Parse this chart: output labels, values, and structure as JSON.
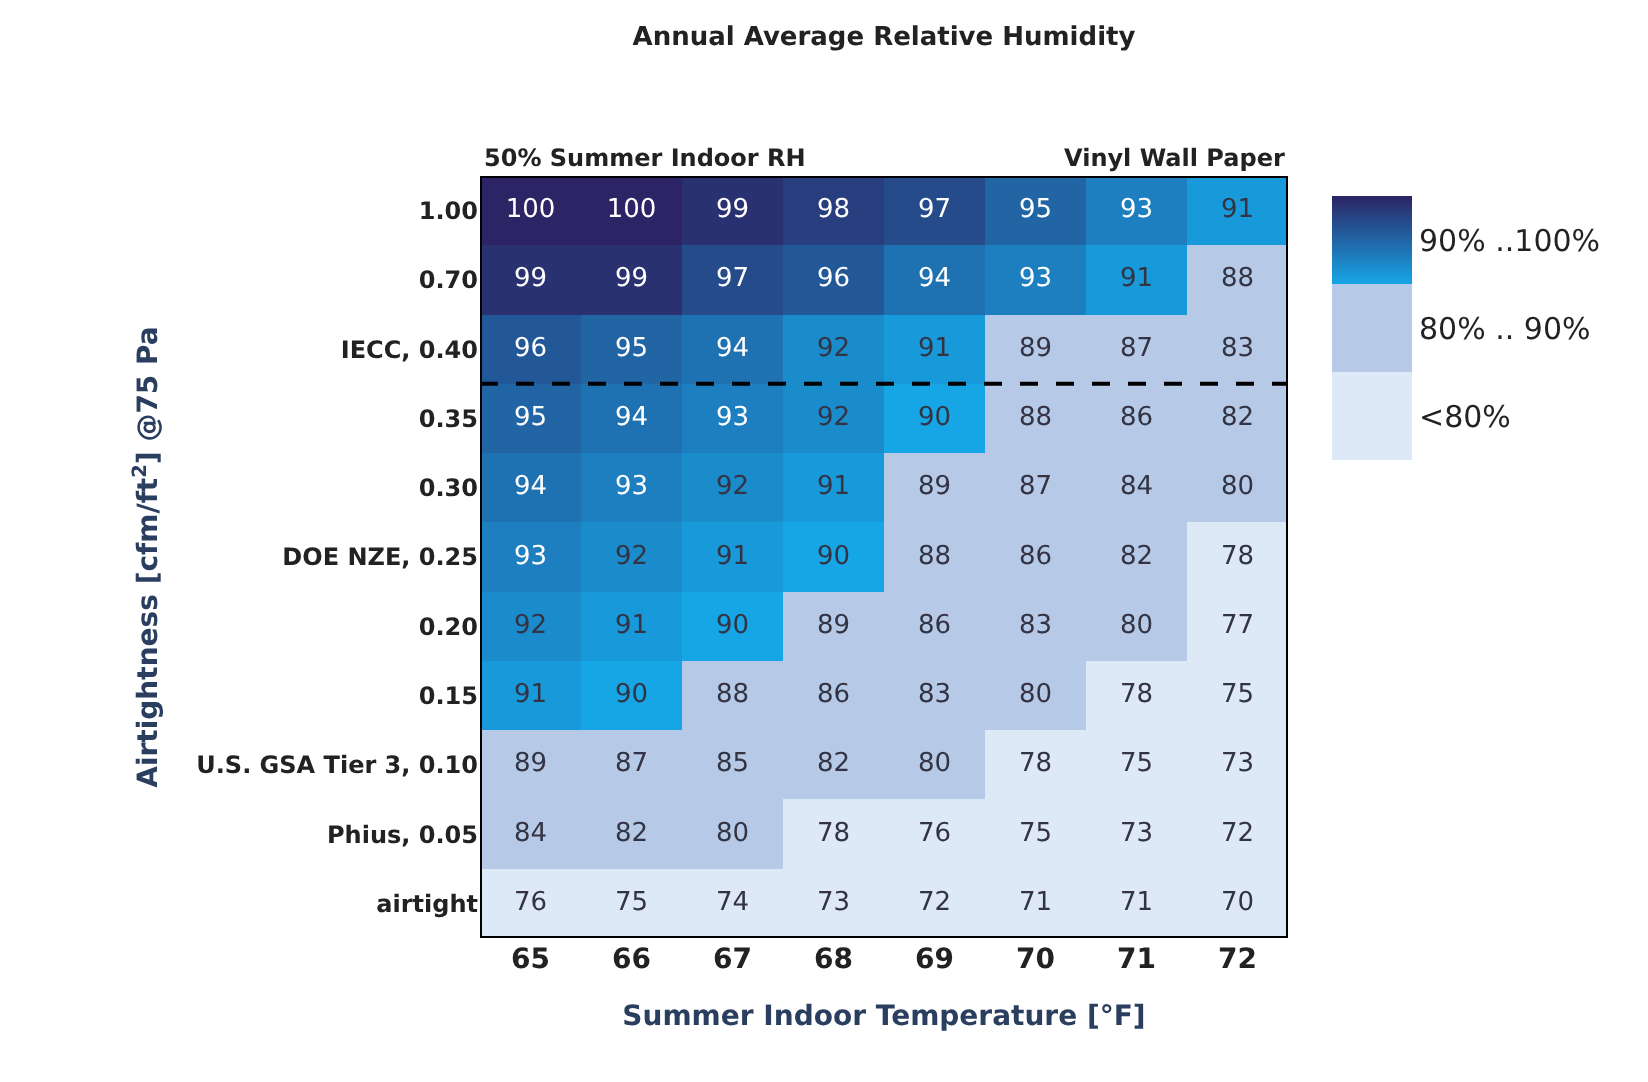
{
  "chart_data": {
    "type": "heatmap",
    "title": "Annual Average Relative Humidity",
    "xlabel": "Summer Indoor Temperature [°F]",
    "ylabel": "Airtightness [cfm/ft$^{2}$] @75 Pa",
    "annotations": [
      "50% Summer Indoor RH",
      "Vinyl Wall Paper"
    ],
    "categories": [
      "65",
      "66",
      "67",
      "68",
      "69",
      "70",
      "71",
      "72"
    ],
    "y_categories": [
      "1.00",
      "0.70",
      "IECC, 0.40",
      "0.35",
      "0.30",
      "DOE NZE, 0.25",
      "0.20",
      "0.15",
      "U.S. GSA Tier 3, 0.10",
      "Phius, 0.05",
      "airtight"
    ],
    "cells": [
      [
        100,
        100,
        99,
        98,
        97,
        95,
        93,
        91
      ],
      [
        99,
        99,
        97,
        96,
        94,
        93,
        91,
        88
      ],
      [
        96,
        95,
        94,
        92,
        91,
        89,
        87,
        83
      ],
      [
        95,
        94,
        93,
        92,
        90,
        88,
        86,
        82
      ],
      [
        94,
        93,
        92,
        91,
        89,
        87,
        84,
        80
      ],
      [
        93,
        92,
        91,
        90,
        88,
        86,
        82,
        78
      ],
      [
        92,
        91,
        90,
        89,
        86,
        83,
        80,
        77
      ],
      [
        91,
        90,
        88,
        86,
        83,
        80,
        78,
        75
      ],
      [
        89,
        87,
        85,
        82,
        80,
        78,
        75,
        73
      ],
      [
        84,
        82,
        80,
        78,
        76,
        75,
        73,
        72
      ],
      [
        76,
        75,
        74,
        73,
        72,
        71,
        71,
        70
      ]
    ],
    "data_labels": true,
    "clim": [
      70,
      100
    ],
    "cticks": [
      {
        "value": 75,
        "label": "<80%"
      },
      {
        "value": 85,
        "label": "80% .. 90%"
      },
      {
        "value": 95,
        "label": "90% ..100%"
      }
    ],
    "colors": [
      "#dde9f6",
      "#b6cae7",
      "#16a6e6",
      "#2c2464"
    ],
    "ref_lines": [
      {
        "axis": "y",
        "value": "IECC, 0.40",
        "line_style": "dashed",
        "color": "#000000"
      }
    ]
  }
}
